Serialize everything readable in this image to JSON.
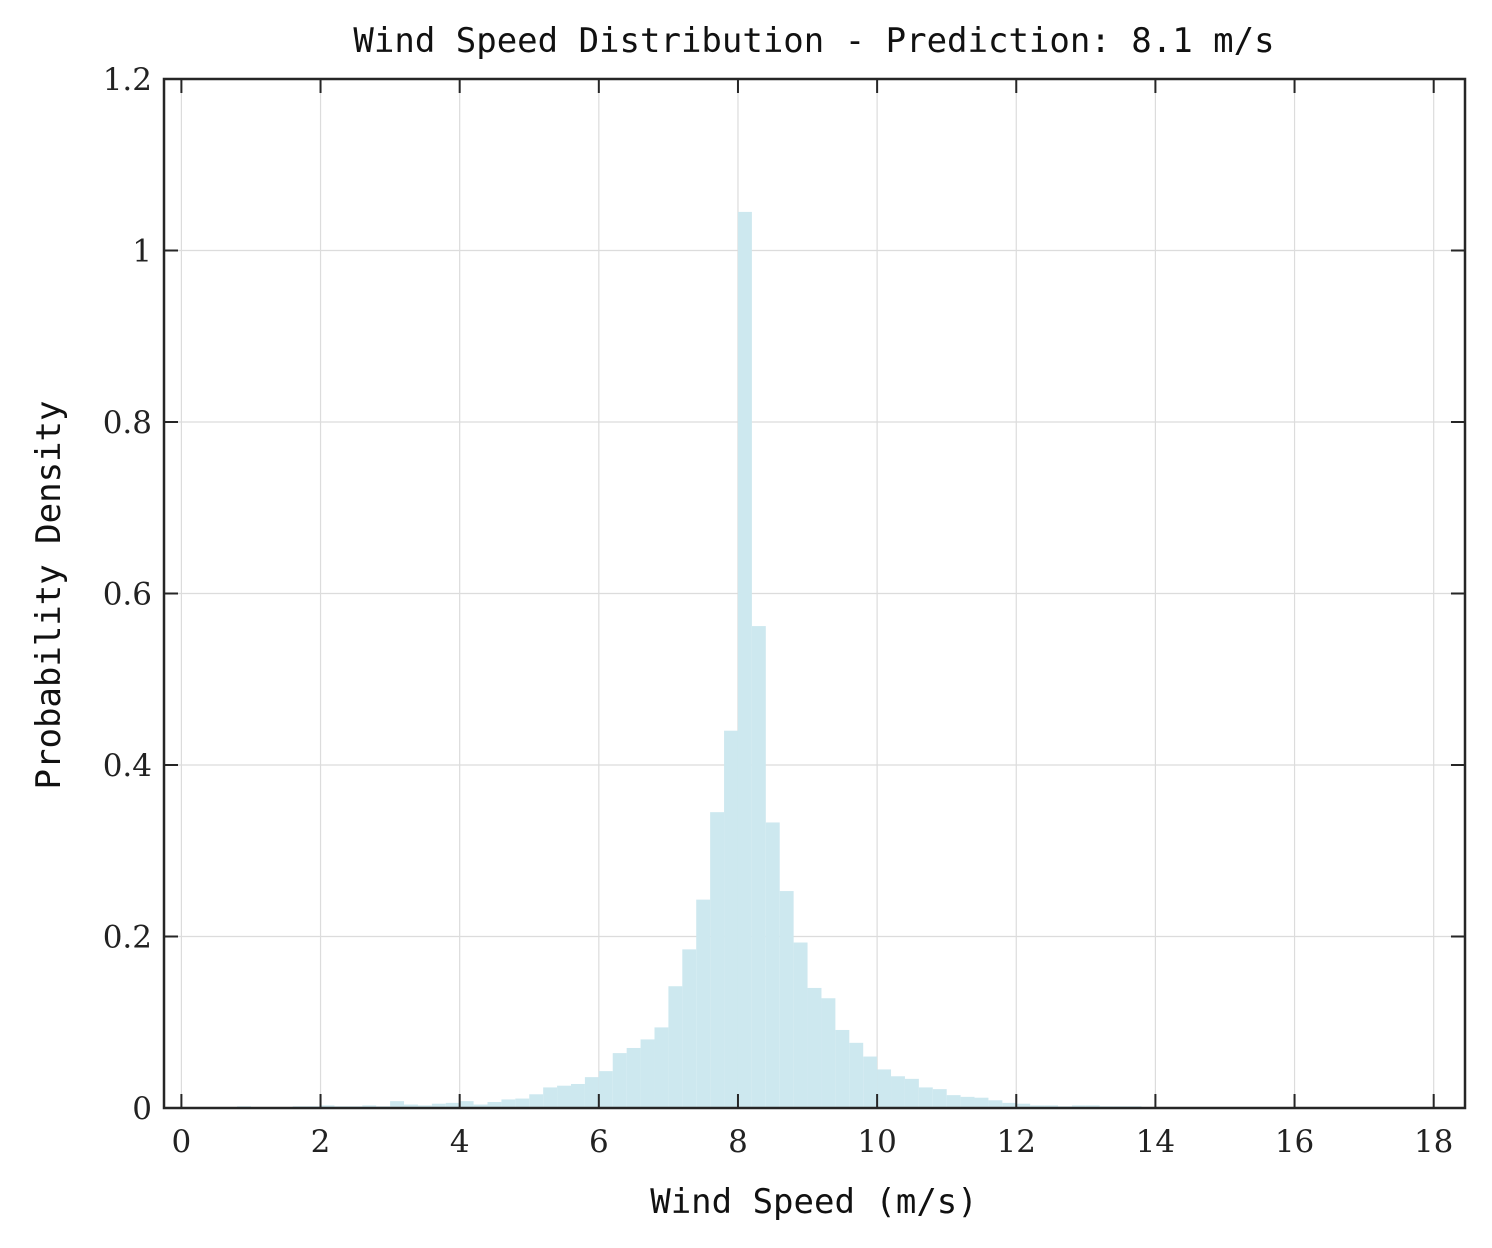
{
  "chart_data": {
    "type": "bar",
    "title": "Wind Speed Distribution - Prediction: 8.1 m/s",
    "xlabel": "Wind Speed (m/s)",
    "ylabel": "Probability Density",
    "xlim": [
      -0.25,
      18.45
    ],
    "ylim": [
      0,
      1.2
    ],
    "xticks": [
      0,
      2,
      4,
      6,
      8,
      10,
      12,
      14,
      16,
      18
    ],
    "xtick_labels": [
      "0",
      "2",
      "4",
      "6",
      "8",
      "10",
      "12",
      "14",
      "16",
      "18"
    ],
    "yticks": [
      0,
      0.2,
      0.4,
      0.6,
      0.8,
      1.0,
      1.2
    ],
    "ytick_labels": [
      "0",
      "0.2",
      "0.4",
      "0.6",
      "0.8",
      "1",
      "1.2"
    ],
    "grid": true,
    "bar_color": "#cde8ef",
    "series": [
      {
        "bins_x": [
          [
            0.8,
            1.0
          ],
          [
            1.6,
            1.8
          ],
          [
            1.8,
            2.0
          ],
          [
            2.0,
            2.2
          ],
          [
            2.2,
            2.4
          ],
          [
            2.4,
            2.6
          ],
          [
            2.6,
            2.8
          ],
          [
            2.8,
            3.0
          ],
          [
            3.0,
            3.2
          ],
          [
            3.2,
            3.4
          ],
          [
            3.4,
            3.6
          ],
          [
            3.6,
            3.8
          ],
          [
            3.8,
            4.0
          ],
          [
            4.0,
            4.2
          ],
          [
            4.2,
            4.4
          ],
          [
            4.4,
            4.6
          ],
          [
            4.6,
            4.8
          ],
          [
            4.8,
            5.0
          ],
          [
            5.0,
            5.2
          ],
          [
            5.2,
            5.4
          ],
          [
            5.4,
            5.6
          ],
          [
            5.6,
            5.8
          ],
          [
            5.8,
            6.0
          ],
          [
            6.0,
            6.2
          ],
          [
            6.2,
            6.4
          ],
          [
            6.4,
            6.6
          ],
          [
            6.6,
            6.8
          ],
          [
            6.8,
            7.0
          ],
          [
            7.0,
            7.2
          ],
          [
            7.2,
            7.4
          ],
          [
            7.4,
            7.6
          ],
          [
            7.6,
            7.8
          ],
          [
            7.8,
            8.0
          ],
          [
            8.0,
            8.2
          ],
          [
            8.2,
            8.4
          ],
          [
            8.4,
            8.6
          ],
          [
            8.6,
            8.8
          ],
          [
            8.8,
            9.0
          ],
          [
            9.0,
            9.2
          ],
          [
            9.2,
            9.4
          ],
          [
            9.4,
            9.6
          ],
          [
            9.6,
            9.8
          ],
          [
            9.8,
            10.0
          ],
          [
            10.0,
            10.2
          ],
          [
            10.2,
            10.4
          ],
          [
            10.4,
            10.6
          ],
          [
            10.6,
            10.8
          ],
          [
            10.8,
            11.0
          ],
          [
            11.0,
            11.2
          ],
          [
            11.2,
            11.4
          ],
          [
            11.4,
            11.6
          ],
          [
            11.6,
            11.8
          ],
          [
            11.8,
            12.0
          ],
          [
            12.0,
            12.2
          ],
          [
            12.2,
            12.4
          ],
          [
            12.4,
            12.6
          ],
          [
            12.6,
            12.8
          ],
          [
            12.8,
            13.0
          ],
          [
            13.0,
            13.2
          ],
          [
            13.2,
            13.4
          ],
          [
            13.4,
            13.6
          ],
          [
            13.6,
            13.8
          ],
          [
            14.4,
            14.6
          ],
          [
            15.0,
            15.2
          ]
        ],
        "values": [
          0.002,
          0.002,
          0.002,
          0.003,
          0.002,
          0.002,
          0.003,
          0.002,
          0.008,
          0.004,
          0.003,
          0.005,
          0.006,
          0.008,
          0.004,
          0.007,
          0.01,
          0.011,
          0.016,
          0.024,
          0.026,
          0.028,
          0.036,
          0.043,
          0.064,
          0.07,
          0.08,
          0.094,
          0.142,
          0.185,
          0.243,
          0.345,
          0.44,
          1.045,
          0.562,
          0.333,
          0.253,
          0.193,
          0.14,
          0.128,
          0.091,
          0.076,
          0.06,
          0.045,
          0.037,
          0.034,
          0.024,
          0.022,
          0.015,
          0.013,
          0.012,
          0.009,
          0.006,
          0.005,
          0.003,
          0.003,
          0.002,
          0.003,
          0.003,
          0.002,
          0.002,
          0.002,
          0.001,
          0.001
        ]
      }
    ]
  }
}
